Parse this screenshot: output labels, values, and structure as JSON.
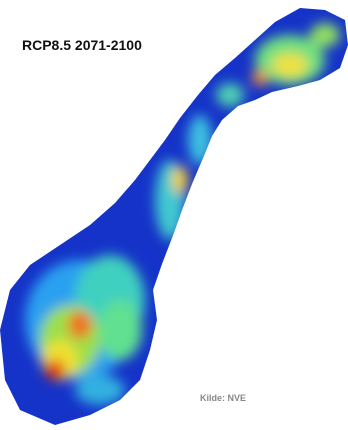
{
  "map": {
    "title": "RCP8.5 2071-2100",
    "source": "Kilde: NVE"
  }
}
